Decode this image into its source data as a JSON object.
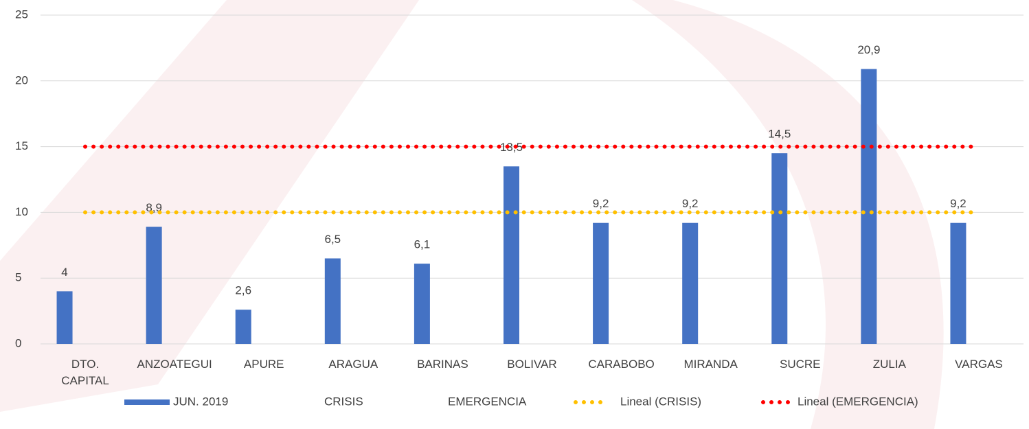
{
  "chart_data": {
    "type": "bar",
    "categories": [
      "DTO. CAPITAL",
      "ANZOATEGUI",
      "APURE",
      "ARAGUA",
      "BARINAS",
      "BOLIVAR",
      "CARABOBO",
      "MIRANDA",
      "SUCRE",
      "ZULIA",
      "VARGAS"
    ],
    "series": [
      {
        "name": "JUN. 2019",
        "color": "#4472c4",
        "values": [
          4,
          8.9,
          2.6,
          6.5,
          6.1,
          13.5,
          9.2,
          9.2,
          14.5,
          20.9,
          9.2
        ],
        "value_labels": [
          "4",
          "8,9",
          "2,6",
          "6,5",
          "6,1",
          "13,5",
          "9,2",
          "9,2",
          "14,5",
          "20,9",
          "9,2"
        ]
      },
      {
        "name": "CRISIS",
        "values": [
          10,
          10,
          10,
          10,
          10,
          10,
          10,
          10,
          10,
          10,
          10
        ],
        "trendline": "Lineal (CRISIS)",
        "trend_color": "#ffc000"
      },
      {
        "name": "EMERGENCIA",
        "values": [
          15,
          15,
          15,
          15,
          15,
          15,
          15,
          15,
          15,
          15,
          15
        ],
        "trendline": "Lineal (EMERGENCIA)",
        "trend_color": "#ff0000"
      }
    ],
    "ylim": [
      0,
      25
    ],
    "yticks": [
      0,
      5,
      10,
      15,
      20,
      25
    ],
    "grid": true
  }
}
